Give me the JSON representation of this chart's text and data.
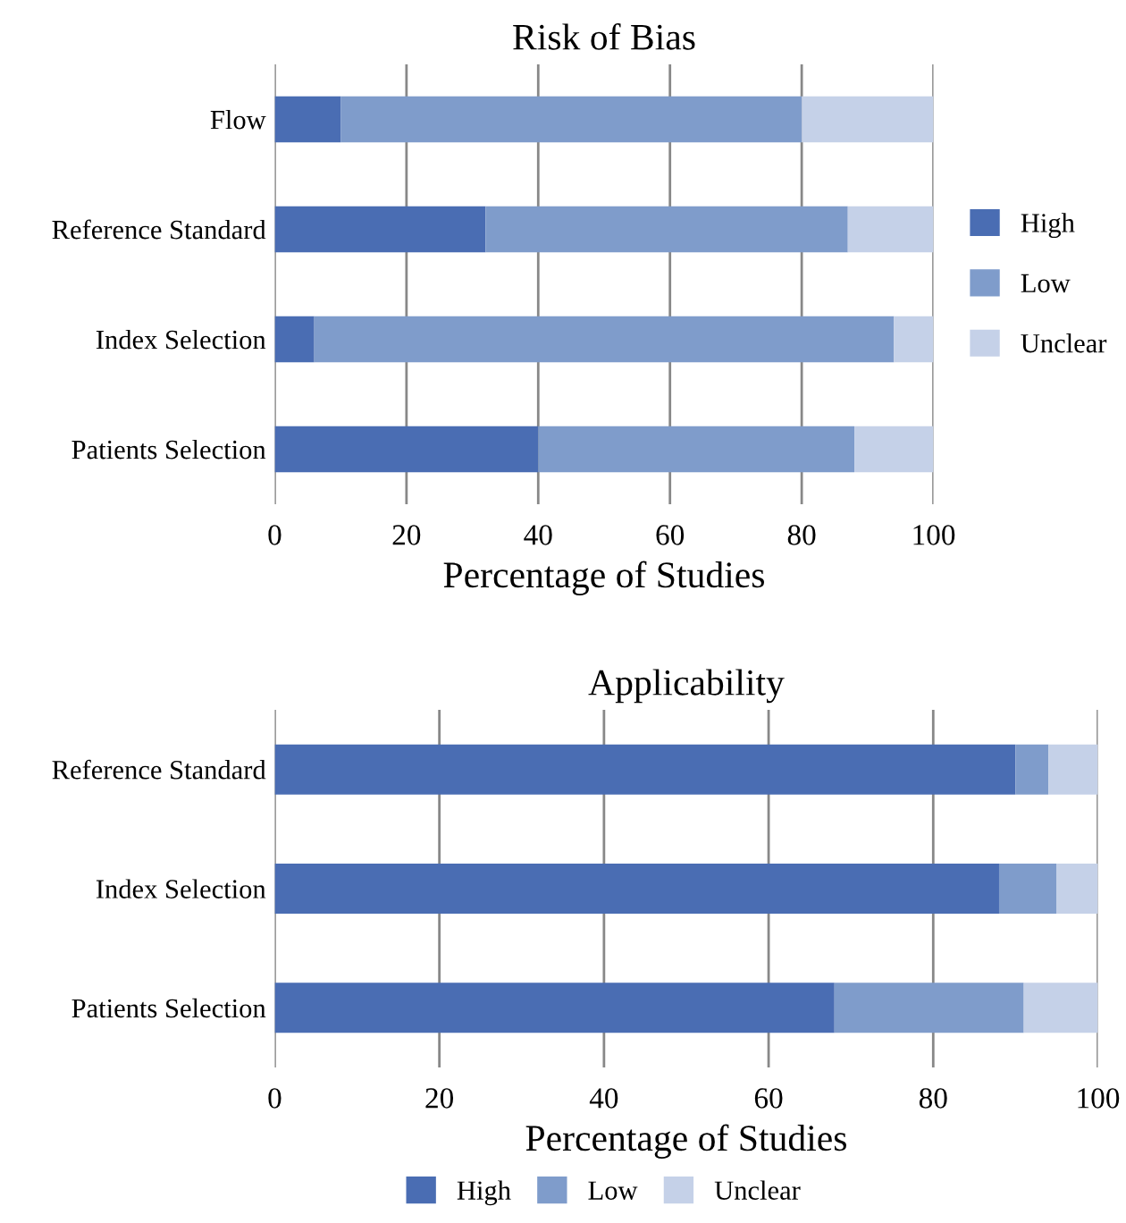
{
  "chart_data": [
    {
      "type": "bar",
      "title": "Risk of Bias",
      "orientation": "horizontal",
      "stacked": true,
      "xlabel": "Percentage of Studies",
      "categories": [
        "Flow",
        "Reference Standard",
        "Index Selection",
        "Patients Selection"
      ],
      "series": [
        {
          "name": "High",
          "color": "#4a6db3",
          "values": [
            10,
            32,
            6,
            40
          ]
        },
        {
          "name": "Low",
          "color": "#7f9ccb",
          "values": [
            70,
            55,
            88,
            48
          ]
        },
        {
          "name": "Unclear",
          "color": "#c5d1e8",
          "values": [
            20,
            13,
            6,
            12
          ]
        }
      ],
      "xlim": [
        0,
        100
      ],
      "xticks": [
        0,
        20,
        40,
        60,
        80,
        100
      ],
      "grid": "x",
      "legend": "right"
    },
    {
      "type": "bar",
      "title": "Applicability",
      "orientation": "horizontal",
      "stacked": true,
      "xlabel": "Percentage of Studies",
      "categories": [
        "Reference Standard",
        "Index Selection",
        "Patients Selection"
      ],
      "series": [
        {
          "name": "High",
          "color": "#4a6db3",
          "values": [
            90,
            88,
            68
          ]
        },
        {
          "name": "Low",
          "color": "#7f9ccb",
          "values": [
            4,
            7,
            23
          ]
        },
        {
          "name": "Unclear",
          "color": "#c5d1e8",
          "values": [
            6,
            5,
            9
          ]
        }
      ],
      "xlim": [
        0,
        100
      ],
      "xticks": [
        0,
        20,
        40,
        60,
        80,
        100
      ],
      "grid": "x",
      "legend": "bottom"
    }
  ]
}
